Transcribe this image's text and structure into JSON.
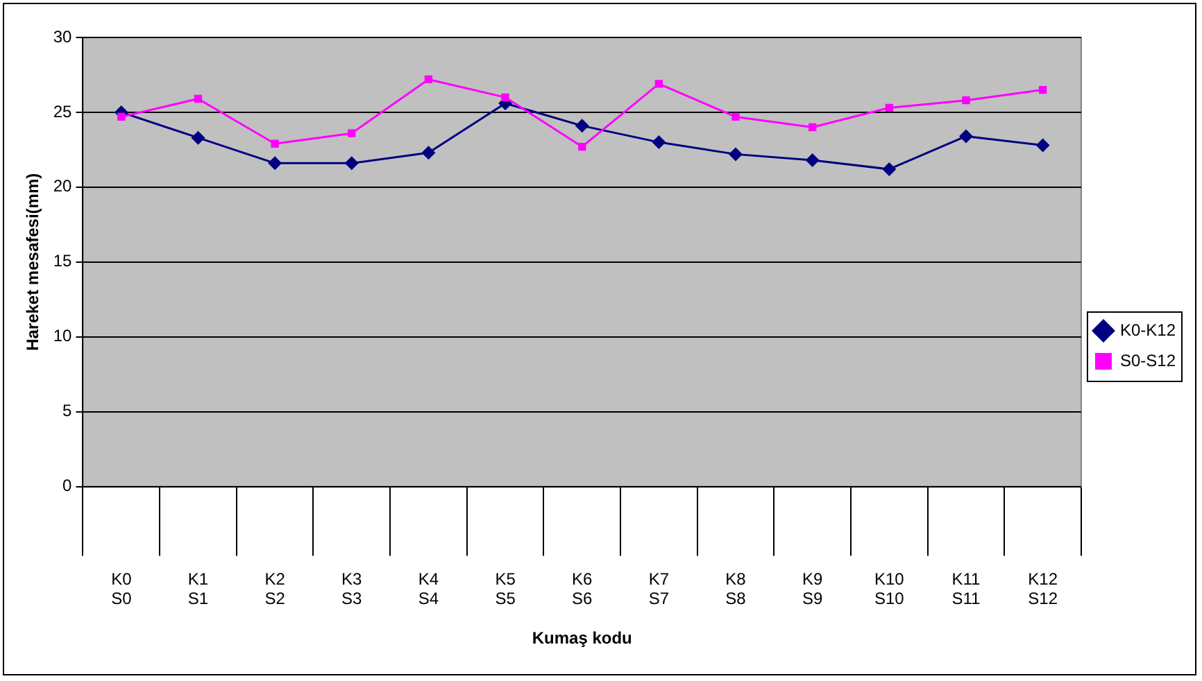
{
  "chart_data": {
    "type": "line",
    "xlabel": "Kumaş kodu",
    "ylabel": "Hareket mesafesi(mm)",
    "categories": [
      "K0\nS0",
      "K1\nS1",
      "K2\nS2",
      "K3\nS3",
      "K4\nS4",
      "K5\nS5",
      "K6\nS6",
      "K7\nS7",
      "K8\nS8",
      "K9\nS9",
      "K10\nS10",
      "K11\nS11",
      "K12\nS12"
    ],
    "series": [
      {
        "name": "K0-K12",
        "color": "#000080",
        "marker": "diamond",
        "values": [
          25.0,
          23.3,
          21.6,
          21.6,
          22.3,
          25.6,
          24.1,
          23.0,
          22.2,
          21.8,
          21.2,
          23.4,
          22.8
        ]
      },
      {
        "name": "S0-S12",
        "color": "#ff00ff",
        "marker": "square",
        "values": [
          24.7,
          25.9,
          22.9,
          23.6,
          27.2,
          26.0,
          22.7,
          26.9,
          24.7,
          24.0,
          25.3,
          25.8,
          26.5
        ]
      }
    ],
    "ylim": [
      0,
      30
    ],
    "yticks": [
      0,
      5,
      10,
      15,
      20,
      25,
      30
    ],
    "grid": "y",
    "legend": "right",
    "line_style": "solid"
  }
}
